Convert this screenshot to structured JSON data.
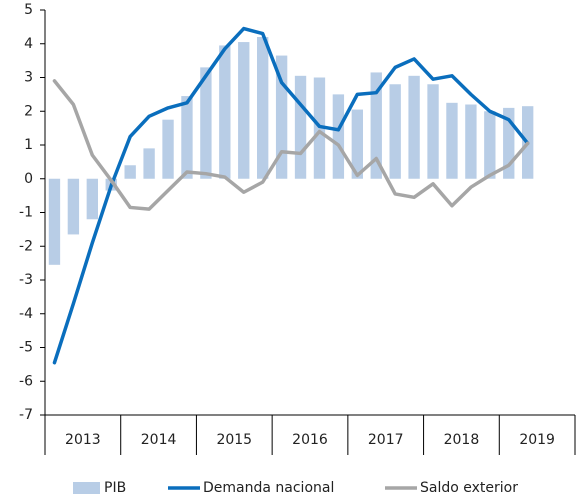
{
  "chart_data": {
    "type": "combo",
    "categories": [
      "2013",
      null,
      null,
      null,
      "2014",
      null,
      null,
      null,
      "2015",
      null,
      null,
      null,
      "2016",
      null,
      null,
      null,
      "2017",
      null,
      null,
      null,
      "2018",
      null,
      null,
      null,
      "2019",
      null,
      null,
      null
    ],
    "series": [
      {
        "name": "PIB",
        "type": "bar",
        "color": "#b8cde6",
        "values": [
          -2.55,
          -1.65,
          -1.2,
          -0.35,
          0.4,
          0.9,
          1.75,
          2.45,
          3.3,
          3.95,
          4.05,
          4.2,
          3.65,
          3.05,
          3.0,
          2.5,
          2.05,
          3.15,
          2.8,
          3.05,
          2.8,
          2.25,
          2.2,
          2.0,
          2.1,
          2.15,
          null,
          null
        ]
      },
      {
        "name": "Demanda nacional",
        "type": "line",
        "color": "#0a6ebd",
        "values": [
          -5.45,
          -3.7,
          -1.9,
          -0.2,
          1.25,
          1.85,
          2.1,
          2.25,
          3.05,
          3.85,
          4.45,
          4.3,
          2.85,
          2.2,
          1.55,
          1.45,
          2.5,
          2.55,
          3.3,
          3.55,
          2.95,
          3.05,
          2.5,
          2.0,
          1.75,
          1.05,
          null,
          null
        ]
      },
      {
        "name": "Saldo exterior",
        "type": "line",
        "color": "#a6a6a6",
        "values": [
          2.9,
          2.2,
          0.7,
          -0.05,
          -0.85,
          -0.9,
          -0.35,
          0.2,
          0.15,
          0.05,
          -0.4,
          -0.1,
          0.8,
          0.75,
          1.4,
          1.0,
          0.1,
          0.6,
          -0.45,
          -0.55,
          -0.15,
          -0.8,
          -0.25,
          0.1,
          0.4,
          1.05,
          null,
          null
        ]
      }
    ],
    "ylim": [
      -7,
      5
    ],
    "yticks": [
      -7,
      -6,
      -5,
      -4,
      -3,
      -2,
      -1,
      0,
      1,
      2,
      3,
      4,
      5
    ],
    "grid": false,
    "legend": "bottom"
  }
}
